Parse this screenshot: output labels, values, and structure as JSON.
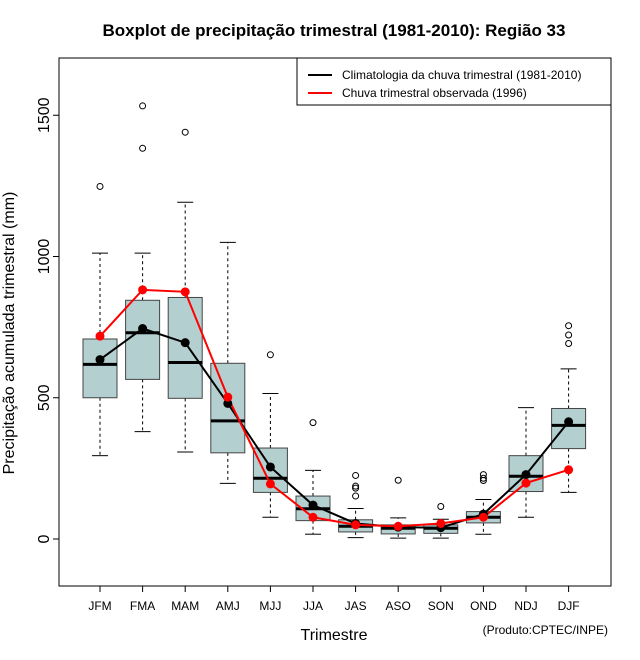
{
  "chart_data": {
    "type": "boxplot",
    "title": "Boxplot de precipitação trimestral (1981-2010): Região 33",
    "xlabel": "Trimestre",
    "ylabel": "Precipitação acumulada trimestral (mm)",
    "credit": "(Produto:CPTEC/INPE)",
    "ylim": [
      -170,
      1700
    ],
    "yticks": [
      0,
      500,
      1000,
      1500
    ],
    "categories": [
      "JFM",
      "FMA",
      "MAM",
      "AMJ",
      "MJJ",
      "JJA",
      "JAS",
      "ASO",
      "SON",
      "OND",
      "NDJ",
      "DJF"
    ],
    "legend": [
      {
        "label": "Climatologia da chuva trimestral (1981-2010)",
        "color": "#000000"
      },
      {
        "label": "Chuva trimestral observada (1996)",
        "color": "#ff0000"
      }
    ],
    "boxes": [
      {
        "whisker_low": 295,
        "q1": 500,
        "median": 618,
        "q3": 708,
        "whisker_high": 1012,
        "outliers": [
          1248
        ]
      },
      {
        "whisker_low": 380,
        "q1": 565,
        "median": 730,
        "q3": 845,
        "whisker_high": 1012,
        "outliers": [
          1383,
          1533
        ]
      },
      {
        "whisker_low": 308,
        "q1": 498,
        "median": 625,
        "q3": 855,
        "whisker_high": 1192,
        "outliers": [
          1440
        ]
      },
      {
        "whisker_low": 197,
        "q1": 305,
        "median": 418,
        "q3": 622,
        "whisker_high": 1050,
        "outliers": []
      },
      {
        "whisker_low": 77,
        "q1": 165,
        "median": 215,
        "q3": 322,
        "whisker_high": 515,
        "outliers": [
          652
        ]
      },
      {
        "whisker_low": 17,
        "q1": 65,
        "median": 107,
        "q3": 152,
        "whisker_high": 243,
        "outliers": [
          412
        ]
      },
      {
        "whisker_low": 5,
        "q1": 25,
        "median": 45,
        "q3": 68,
        "whisker_high": 108,
        "outliers": [
          152,
          180,
          187,
          225
        ]
      },
      {
        "whisker_low": 3,
        "q1": 18,
        "median": 38,
        "q3": 50,
        "whisker_high": 75,
        "outliers": [
          208
        ]
      },
      {
        "whisker_low": 3,
        "q1": 20,
        "median": 38,
        "q3": 50,
        "whisker_high": 70,
        "outliers": [
          115
        ]
      },
      {
        "whisker_low": 17,
        "q1": 57,
        "median": 77,
        "q3": 97,
        "whisker_high": 140,
        "outliers": [
          207,
          215,
          228
        ]
      },
      {
        "whisker_low": 77,
        "q1": 168,
        "median": 222,
        "q3": 295,
        "whisker_high": 465,
        "outliers": []
      },
      {
        "whisker_low": 165,
        "q1": 320,
        "median": 402,
        "q3": 462,
        "whisker_high": 602,
        "outliers": [
          692,
          722,
          755
        ]
      }
    ],
    "series": [
      {
        "name": "Climatologia da chuva trimestral (1981-2010)",
        "color": "#000000",
        "values": [
          635,
          745,
          695,
          480,
          255,
          120,
          55,
          42,
          40,
          88,
          228,
          415
        ]
      },
      {
        "name": "Chuva trimestral observada (1996)",
        "color": "#ff0000",
        "values": [
          718,
          882,
          875,
          502,
          195,
          77,
          50,
          45,
          55,
          77,
          198,
          245
        ]
      }
    ]
  }
}
